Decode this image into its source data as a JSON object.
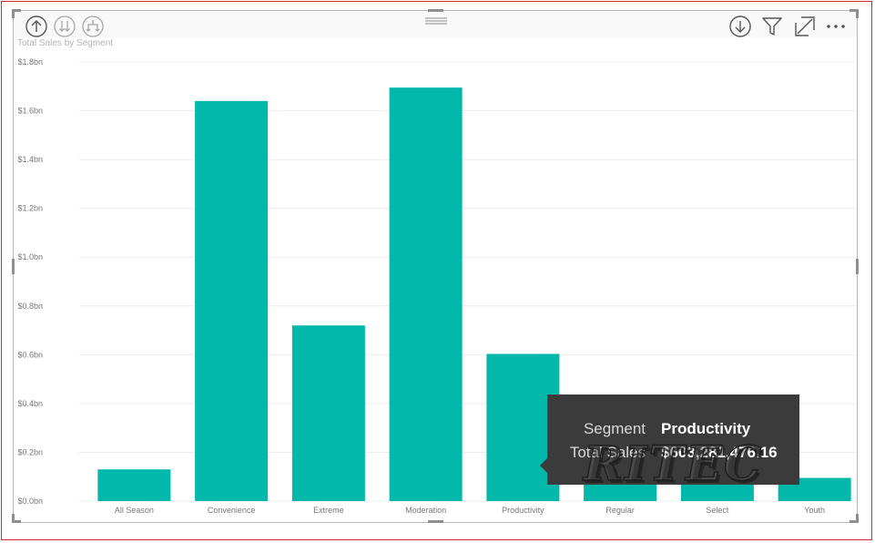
{
  "chart_data": {
    "type": "bar",
    "title": "Total Sales by Segment",
    "categories": [
      "All Season",
      "Convenience",
      "Extreme",
      "Moderation",
      "Productivity",
      "Regular",
      "Select",
      "Youth"
    ],
    "series": [
      {
        "values": [
          0.13,
          1.64,
          0.72,
          1.695,
          0.603281476,
          0.08,
          0.085,
          0.095
        ]
      }
    ],
    "ylim": [
      0,
      1.8
    ],
    "yticks": [
      0,
      0.2,
      0.4,
      0.6,
      0.8,
      1.0,
      1.2,
      1.4,
      1.6,
      1.8
    ],
    "ytick_labels": [
      "$0.0bn",
      "$0.2bn",
      "$0.4bn",
      "$0.6bn",
      "$0.8bn",
      "$1.0bn",
      "$1.2bn",
      "$1.4bn",
      "$1.6bn",
      "$1.8bn"
    ],
    "grid": true,
    "legend": "none",
    "bar_color": "#01b8aa"
  },
  "tooltip": {
    "segment_label": "Segment",
    "segment_value": "Productivity",
    "sales_label": "Total Sales",
    "sales_value": "$603,281,476.16"
  },
  "watermark_text": "RITEC",
  "icons": {
    "drill_up": "arrow-up-circle-icon",
    "drill_next_level": "double-arrow-down-circle-icon",
    "expand_hierarchy": "fork-down-circle-icon",
    "drill_mode": "arrow-down-circle-icon",
    "filter": "funnel-icon",
    "focus_mode": "expand-icon",
    "more_options": "ellipsis-icon"
  },
  "colors": {
    "frame_border": "#d6262b",
    "tooltip_bg": "#3b3b3b"
  }
}
